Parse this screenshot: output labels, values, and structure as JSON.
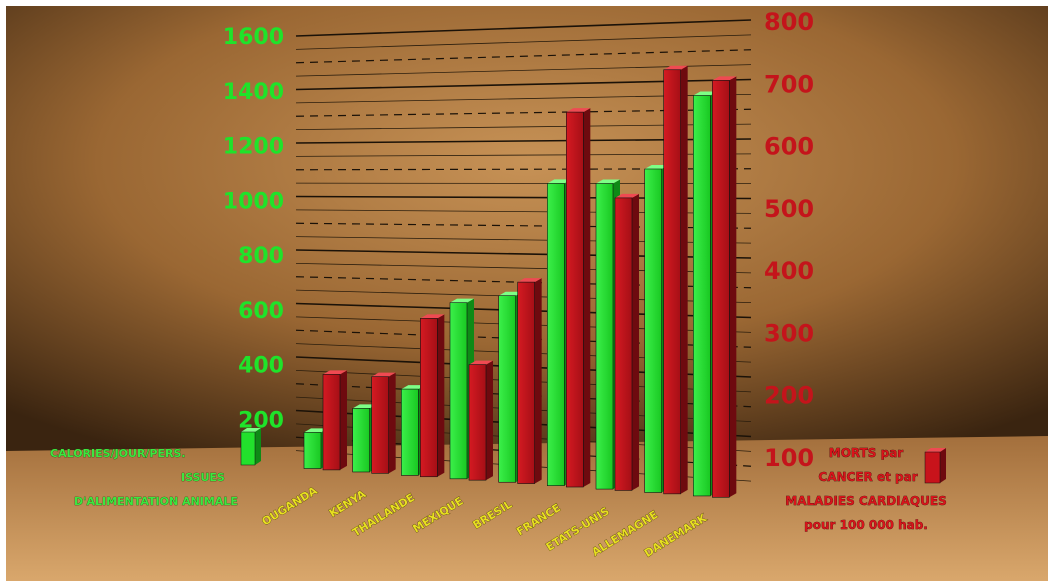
{
  "chart_data": {
    "type": "bar",
    "categories": [
      "OUGANDA",
      "KENYA",
      "THAILANDE",
      "MEXIQUE",
      "BRESIL",
      "FRANCE",
      "ETATS-UNIS",
      "ALLEMAGNE",
      "DANEMARK"
    ],
    "series": [
      {
        "name": "CALORIES/JOUR/PERS. ISSUES D'ALIMENTATION ANIMALE",
        "axis": "left",
        "color": "#22e12c",
        "values": [
          120,
          220,
          300,
          620,
          650,
          1050,
          1050,
          1100,
          1350
        ]
      },
      {
        "name": "MORTS par CANCER et par MALADIES CARDIAQUES pour 100 000 hab.",
        "axis": "right",
        "color": "#c8131b",
        "values": [
          170,
          170,
          280,
          200,
          350,
          650,
          500,
          720,
          700
        ]
      }
    ],
    "ylim_left": [
      0,
      1600
    ],
    "ylim_right": [
      0,
      800
    ],
    "yticks_left": [
      "200",
      "400",
      "600",
      "800",
      "1000",
      "1200",
      "1400",
      "1600"
    ],
    "yticks_right": [
      "100",
      "200",
      "300",
      "400",
      "500",
      "600",
      "700",
      "800"
    ],
    "legend_left": {
      "lines": [
        "CALORIES/JOUR/PERS.",
        "ISSUES",
        "D'ALIMENTATION ANIMALE"
      ],
      "color": "#22e12c"
    },
    "legend_right": {
      "lines": [
        "MORTS par",
        "CANCER et par",
        "MALADIES CARDIAQUES",
        "pour 100 000 hab."
      ],
      "color": "#c8131b"
    },
    "grid": true,
    "background": "#9a6733"
  }
}
